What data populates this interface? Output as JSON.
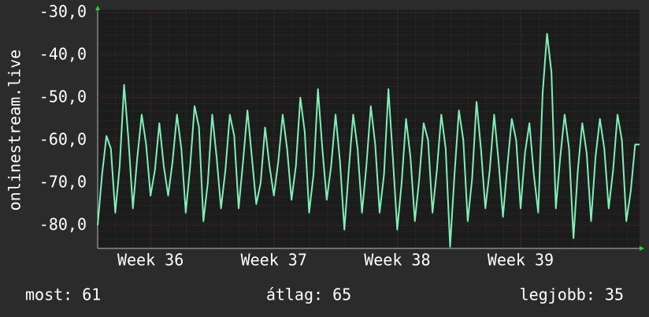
{
  "chart_data": {
    "type": "line",
    "y_label": "onlinestream.live",
    "annotations": [
      "most: 61",
      "átlag: 65",
      "legjobb: 35"
    ],
    "xlim": [
      0,
      30.75
    ],
    "xticks": [
      {
        "value": 3,
        "label": "Week 36"
      },
      {
        "value": 10,
        "label": "Week 37"
      },
      {
        "value": 17,
        "label": "Week 38"
      },
      {
        "value": 24,
        "label": "Week 39"
      }
    ],
    "ylim": [
      -85.4,
      -29.3
    ],
    "yticks": [
      {
        "value": -80,
        "label": "-80,0"
      },
      {
        "value": -70,
        "label": "-70,0"
      },
      {
        "value": -60,
        "label": "-60,0"
      },
      {
        "value": -50,
        "label": "-50,0"
      },
      {
        "value": -40,
        "label": "-40,0"
      },
      {
        "value": -30,
        "label": "-30,0"
      }
    ],
    "grid": true,
    "x": [
      0,
      0.25,
      0.5,
      0.75,
      1,
      1.25,
      1.5,
      1.75,
      2,
      2.25,
      2.5,
      2.75,
      3,
      3.25,
      3.5,
      3.75,
      4,
      4.25,
      4.5,
      4.75,
      5,
      5.25,
      5.5,
      5.75,
      6,
      6.25,
      6.5,
      6.75,
      7,
      7.25,
      7.5,
      7.75,
      8,
      8.25,
      8.5,
      8.75,
      9,
      9.25,
      9.5,
      9.75,
      10,
      10.25,
      10.5,
      10.75,
      11,
      11.25,
      11.5,
      11.75,
      12,
      12.25,
      12.5,
      12.75,
      13,
      13.25,
      13.5,
      13.75,
      14,
      14.25,
      14.5,
      14.75,
      15,
      15.25,
      15.5,
      15.75,
      16,
      16.25,
      16.5,
      16.75,
      17,
      17.25,
      17.5,
      17.75,
      18,
      18.25,
      18.5,
      18.75,
      19,
      19.25,
      19.5,
      19.75,
      20,
      20.25,
      20.5,
      20.75,
      21,
      21.25,
      21.5,
      21.75,
      22,
      22.25,
      22.5,
      22.75,
      23,
      23.25,
      23.5,
      23.75,
      24,
      24.25,
      24.5,
      24.75,
      25,
      25.25,
      25.5,
      25.75,
      26,
      26.25,
      26.5,
      26.75,
      27,
      27.25,
      27.5,
      27.75,
      28,
      28.25,
      28.5,
      28.75,
      29,
      29.25,
      29.5,
      29.75,
      30,
      30.25,
      30.5,
      30.75
    ],
    "series": [
      {
        "color": "#7ff0b8",
        "values": [
          -80,
          -68,
          -59,
          -62,
          -77,
          -66,
          -47,
          -60,
          -76,
          -64,
          -54,
          -61,
          -73,
          -67,
          -56,
          -66,
          -73,
          -65,
          -54,
          -62,
          -77,
          -66,
          -52,
          -57,
          -79,
          -70,
          -54,
          -64,
          -76,
          -67,
          -54,
          -59,
          -76,
          -65,
          -53,
          -64,
          -75,
          -70,
          -57,
          -66,
          -73,
          -65,
          -54,
          -62,
          -74,
          -66,
          -50,
          -58,
          -77,
          -68,
          -48,
          -62,
          -74,
          -66,
          -54,
          -65,
          -81,
          -67,
          -54,
          -62,
          -77,
          -66,
          -52,
          -61,
          -77,
          -68,
          -48,
          -64,
          -81,
          -70,
          -55,
          -64,
          -79,
          -69,
          -56,
          -60,
          -77,
          -67,
          -54,
          -62,
          -85,
          -68,
          -53,
          -60,
          -79,
          -69,
          -51,
          -62,
          -76,
          -67,
          -54,
          -65,
          -78,
          -66,
          -55,
          -60,
          -76,
          -63,
          -56,
          -68,
          -77,
          -49,
          -35,
          -44,
          -76,
          -64,
          -54,
          -62,
          -83,
          -67,
          -56,
          -63,
          -79,
          -64,
          -55,
          -62,
          -76,
          -67,
          -54,
          -60,
          -79,
          -72,
          -61,
          -61
        ]
      }
    ]
  }
}
